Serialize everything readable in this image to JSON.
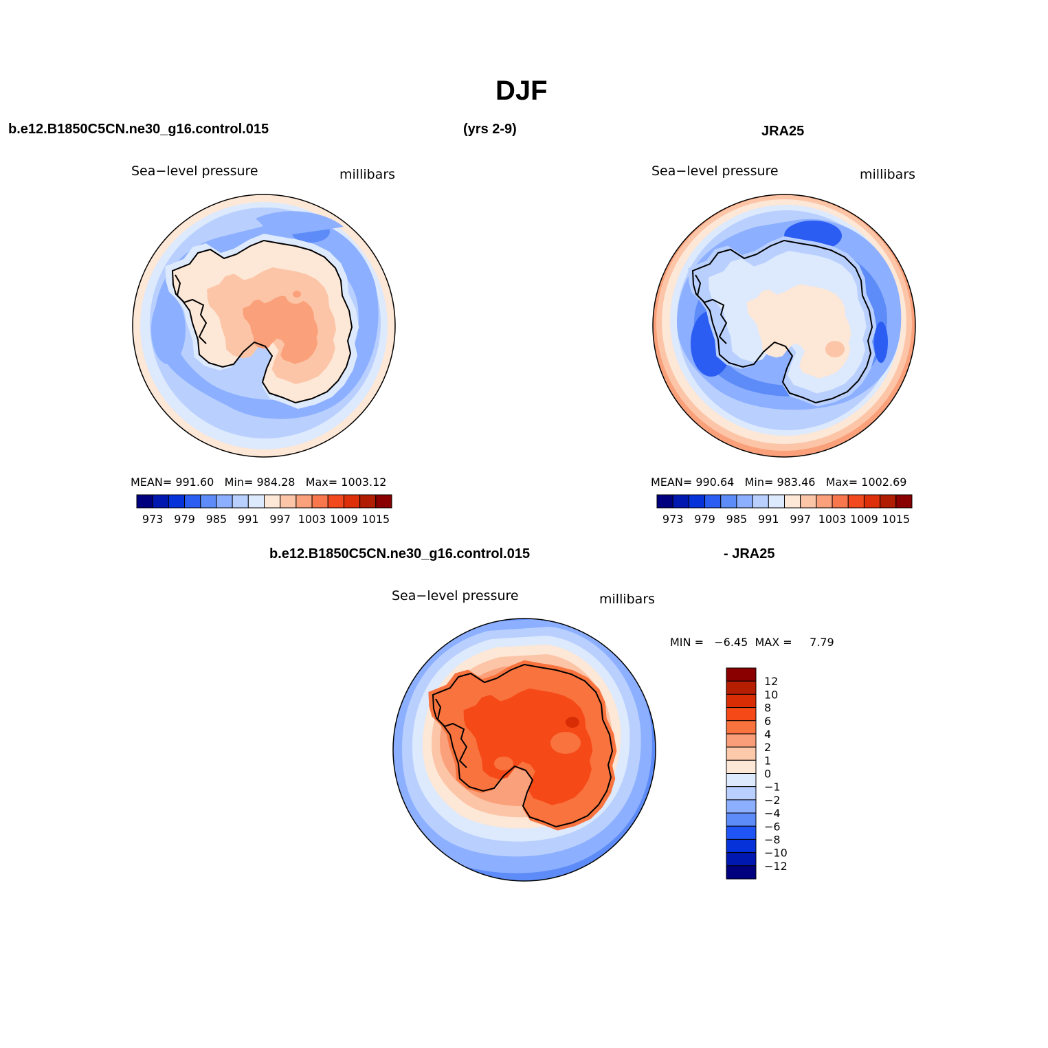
{
  "title": "DJF",
  "top_left": {
    "case": "b.e12.B1850C5CN.ne30_g16.control.015",
    "years": "(yrs 2-9)",
    "variable": "Sea−level pressure",
    "units": "millibars",
    "stats": "MEAN= 991.60   Min= 984.28   Max= 1003.12"
  },
  "top_right": {
    "case": "JRA25",
    "variable": "Sea−level pressure",
    "units": "millibars",
    "stats": "MEAN= 990.64   Min= 983.46   Max= 1002.69"
  },
  "bottom": {
    "case": "b.e12.B1850C5CN.ne30_g16.control.015",
    "minus": "- JRA25",
    "variable": "Sea−level pressure",
    "units": "millibars",
    "stats": "MIN =   −6.45  MAX =     7.79"
  },
  "colorbar_top": {
    "labels": [
      "973",
      "979",
      "985",
      "991",
      "997",
      "1003",
      "1009",
      "1015"
    ],
    "colors": [
      "#00007f",
      "#0018b0",
      "#0532d9",
      "#2b5df2",
      "#5d8bf7",
      "#8cafff",
      "#b9d0ff",
      "#dde9fc",
      "#fde7d6",
      "#fcc5a7",
      "#faa07a",
      "#f8774d",
      "#f24a1e",
      "#dd2f0a",
      "#b01d00",
      "#8a0000"
    ]
  },
  "colorbar_diff": {
    "labels": [
      "12",
      "10",
      "8",
      "6",
      "4",
      "2",
      "1",
      "0",
      "−1",
      "−2",
      "−4",
      "−6",
      "−8",
      "−10",
      "−12"
    ],
    "colors": [
      "#8a0000",
      "#b51e00",
      "#d82d05",
      "#f54a18",
      "#f9733e",
      "#fa9e79",
      "#fccaab",
      "#fde7d6",
      "#dde9fc",
      "#b9d0ff",
      "#8cafff",
      "#5d8bf7",
      "#1f54f5",
      "#0532d9",
      "#0018b0",
      "#00007f"
    ]
  }
}
